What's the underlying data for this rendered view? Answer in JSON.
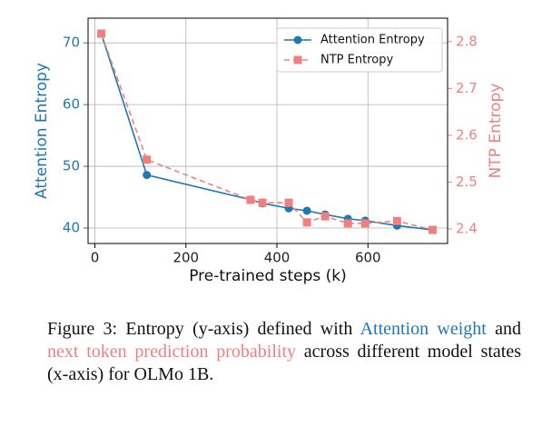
{
  "chart_data": {
    "type": "line",
    "xlabel": "Pre-trained steps (k)",
    "ylabel": "Attention Entropy",
    "y2label": "NTP Entropy",
    "x": [
      14,
      114,
      342,
      368,
      426,
      466,
      506,
      556,
      594,
      664,
      742
    ],
    "series": [
      {
        "name": "Attention Entropy",
        "color": "#1f77b4",
        "marker": "circle",
        "dashed": false,
        "values": [
          71.5,
          48.6,
          44.6,
          44.0,
          43.2,
          42.8,
          42.2,
          41.5,
          41.2,
          40.4,
          39.7
        ]
      },
      {
        "name": "NTP Entropy",
        "color": "#f08080",
        "marker": "square",
        "dashed": true,
        "axis": "y2",
        "values": [
          2.817,
          2.548,
          2.462,
          2.456,
          2.456,
          2.414,
          2.427,
          2.412,
          2.412,
          2.417,
          2.398
        ]
      }
    ],
    "xlim": [
      -15,
      775
    ],
    "xticks": [
      0,
      200,
      400,
      600
    ],
    "ylim": [
      37.5,
      74
    ],
    "yticks": [
      40,
      50,
      60,
      70
    ],
    "y2lim": [
      2.369,
      2.85
    ],
    "y2ticks": [
      2.4,
      2.5,
      2.6,
      2.7,
      2.8
    ],
    "grid": true,
    "legend": "upper right"
  },
  "caption": {
    "parts": [
      {
        "text": "Figure 3: Entropy (y-axis) defined with "
      },
      {
        "text": "Attention weight",
        "color": "#1f77b4"
      },
      {
        "text": " and "
      },
      {
        "text": "next token prediction probability",
        "color": "#f08080"
      },
      {
        "text": " across different model states (x-axis) for OLMo 1B."
      }
    ]
  }
}
